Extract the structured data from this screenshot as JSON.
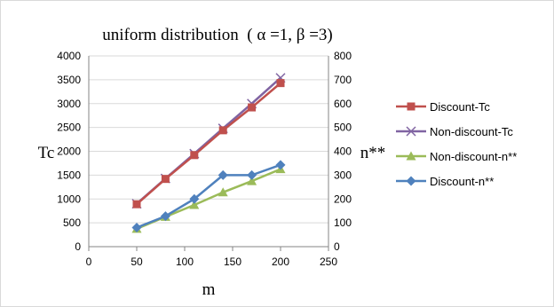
{
  "chart_data": {
    "type": "line",
    "title": "uniform distribution  ( α =1, β =3)",
    "xlabel": "m",
    "ylabel_left": "Tc",
    "ylabel_right": "n**",
    "xlim": [
      0,
      250
    ],
    "ylim_left": [
      0,
      4000
    ],
    "ylim_right": [
      0,
      800
    ],
    "x_ticks": [
      0,
      50,
      100,
      150,
      200,
      250
    ],
    "y_left_ticks": [
      0,
      500,
      1000,
      1500,
      2000,
      2500,
      3000,
      3500,
      4000
    ],
    "y_right_ticks": [
      0,
      100,
      200,
      300,
      400,
      500,
      600,
      700,
      800
    ],
    "grid": "horizontal",
    "legend_position": "right",
    "series": [
      {
        "name": "Discount-Tc",
        "axis": "left",
        "marker": "square",
        "color": "#c0504d",
        "x": [
          50,
          80,
          110,
          140,
          170,
          200
        ],
        "y": [
          890,
          1420,
          1920,
          2440,
          2920,
          3430
        ]
      },
      {
        "name": "Non-discount-Tc",
        "axis": "left",
        "marker": "x",
        "color": "#8064a2",
        "x": [
          50,
          80,
          110,
          140,
          170,
          200
        ],
        "y": [
          900,
          1430,
          1950,
          2480,
          3000,
          3540
        ]
      },
      {
        "name": "Non-discount-n**",
        "axis": "right",
        "marker": "triangle",
        "color": "#9bbb59",
        "x": [
          50,
          80,
          110,
          140,
          170,
          200
        ],
        "y": [
          75,
          125,
          175,
          228,
          275,
          325
        ]
      },
      {
        "name": "Discount-n**",
        "axis": "right",
        "marker": "diamond",
        "color": "#4f81bd",
        "x": [
          50,
          80,
          110,
          140,
          170,
          200
        ],
        "y": [
          80,
          128,
          200,
          300,
          300,
          343
        ]
      }
    ]
  }
}
